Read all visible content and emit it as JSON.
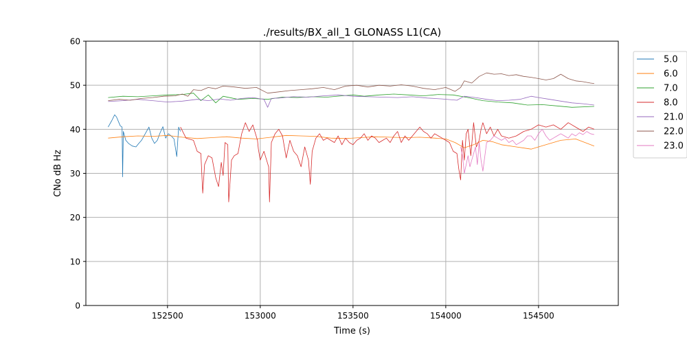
{
  "chart_data": {
    "type": "line",
    "title": "./results/BX_all_1 GLONASS L1(CA)",
    "xlabel": "Time (s)",
    "ylabel": "CNo dB Hz",
    "xlim": [
      152060,
      154930
    ],
    "ylim": [
      0,
      60
    ],
    "xticks": [
      152500,
      153000,
      153500,
      154000,
      154500
    ],
    "xtick_labels": [
      "152500",
      "153000",
      "153500",
      "154000",
      "154500"
    ],
    "yticks": [
      0,
      10,
      20,
      30,
      40,
      50,
      60
    ],
    "ytick_labels": [
      "0",
      "10",
      "20",
      "30",
      "40",
      "50",
      "60"
    ],
    "grid": true,
    "legend_position": "outside-top-right",
    "series": [
      {
        "name": "5.0",
        "color": "#1f77b4",
        "x": [
          152180,
          152200,
          152215,
          152225,
          152235,
          152245,
          152255,
          152258,
          152262,
          152275,
          152290,
          152310,
          152330,
          152345,
          152360,
          152380,
          152400,
          152415,
          152430,
          152445,
          152460,
          152475,
          152490,
          152505,
          152520,
          152535,
          152550,
          152560,
          152570
        ],
        "y": [
          40.5,
          42,
          43.3,
          42.8,
          41.8,
          40.8,
          40.5,
          29.2,
          39.5,
          37.5,
          36.8,
          36.2,
          36,
          36.8,
          37.5,
          39,
          40.5,
          38,
          36.8,
          37.5,
          39.2,
          40.6,
          38,
          39,
          38.5,
          37.8,
          33.8,
          40.5,
          39.5
        ]
      },
      {
        "name": "6.0",
        "color": "#ff7f0e",
        "x": [
          152180,
          152260,
          152340,
          152420,
          152500,
          152580,
          152660,
          152740,
          152820,
          152900,
          152980,
          153060,
          153140,
          153220,
          153300,
          153380,
          153460,
          153540,
          153620,
          153700,
          153780,
          153860,
          153940,
          154000,
          154050,
          154100,
          154150,
          154200,
          154250,
          154300,
          154380,
          154460,
          154540,
          154620,
          154700,
          154800
        ],
        "y": [
          38,
          38.3,
          38.5,
          38.4,
          38.6,
          38.2,
          37.9,
          38.1,
          38.3,
          38,
          37.8,
          38.2,
          38.6,
          38.5,
          38.4,
          38,
          37.9,
          38.1,
          38.3,
          38.2,
          38.1,
          38.2,
          38,
          37.8,
          37,
          35.8,
          36.5,
          37.5,
          37.2,
          36.5,
          36,
          35.5,
          36.5,
          37.5,
          37.8,
          36.2
        ]
      },
      {
        "name": "7.0",
        "color": "#2ca02c",
        "x": [
          152180,
          152260,
          152340,
          152420,
          152500,
          152580,
          152640,
          152680,
          152720,
          152760,
          152800,
          152880,
          152960,
          153040,
          153120,
          153200,
          153280,
          153360,
          153440,
          153500,
          153560,
          153640,
          153720,
          153800,
          153880,
          153960,
          154040,
          154120,
          154200,
          154280,
          154360,
          154440,
          154520,
          154600,
          154680,
          154800
        ],
        "y": [
          47.2,
          47.5,
          47.4,
          47.6,
          47.8,
          47.9,
          48.2,
          46.5,
          47.8,
          46,
          47.5,
          46.8,
          47,
          46.8,
          47.3,
          47.2,
          47.4,
          47.3,
          47.6,
          47.8,
          47.5,
          47.8,
          48,
          47.8,
          47.6,
          47.9,
          47.8,
          47.2,
          46.5,
          46.2,
          46,
          45.5,
          45.6,
          45.3,
          45,
          45.2
        ]
      },
      {
        "name": "8.0",
        "color": "#d62728",
        "x": [
          152570,
          152600,
          152640,
          152660,
          152680,
          152690,
          152700,
          152720,
          152740,
          152760,
          152775,
          152790,
          152800,
          152810,
          152825,
          152830,
          152845,
          152860,
          152880,
          152900,
          152920,
          152940,
          152960,
          152985,
          152990,
          153000,
          153020,
          153045,
          153050,
          153060,
          153080,
          153100,
          153120,
          153140,
          153160,
          153180,
          153200,
          153220,
          153240,
          153260,
          153270,
          153280,
          153300,
          153320,
          153340,
          153360,
          153380,
          153400,
          153420,
          153440,
          153460,
          153480,
          153500,
          153520,
          153540,
          153560,
          153580,
          153600,
          153620,
          153640,
          153660,
          153680,
          153700,
          153720,
          153740,
          153760,
          153780,
          153800,
          153820,
          153840,
          153860,
          153880,
          153900,
          153920,
          153940,
          153960,
          153980,
          154000,
          154020,
          154040,
          154060,
          154070,
          154080,
          154090,
          154100,
          154110,
          154120,
          154135,
          154150,
          154165,
          154180,
          154190,
          154200,
          154220,
          154240,
          154260,
          154280,
          154300,
          154340,
          154380,
          154420,
          154460,
          154500,
          154540,
          154580,
          154620,
          154660,
          154700,
          154740,
          154770,
          154800
        ],
        "y": [
          40.5,
          38,
          37.5,
          35,
          34.5,
          25.5,
          32,
          34,
          33.5,
          29,
          27,
          32.5,
          29.5,
          37,
          36.5,
          23.5,
          33,
          34,
          34.5,
          39,
          41.5,
          39.5,
          41,
          37.5,
          35.5,
          33,
          35,
          31.5,
          23.5,
          37,
          39,
          40,
          38.5,
          33.5,
          37.5,
          35,
          34,
          31.5,
          36,
          33,
          27.5,
          35,
          38,
          39,
          37.5,
          38,
          37.5,
          37,
          38.5,
          36.5,
          38,
          37,
          36.5,
          37.5,
          38,
          39,
          37.5,
          38.5,
          38,
          37,
          37.5,
          38,
          37,
          38.5,
          39.5,
          37,
          38.5,
          37.5,
          38.5,
          39.5,
          40.5,
          39.5,
          39,
          38,
          39,
          38.5,
          38,
          37.5,
          37,
          35,
          34.5,
          31,
          28.5,
          37.5,
          33,
          39,
          40,
          34,
          41.5,
          36,
          37.5,
          40,
          41.5,
          39,
          40.5,
          38.5,
          40,
          38.5,
          38,
          38.5,
          39.5,
          40,
          41,
          40.5,
          41,
          40,
          41.5,
          40.5,
          39.5,
          40.5,
          40
        ]
      },
      {
        "name": "21.0",
        "color": "#9467bd",
        "x": [
          152180,
          152260,
          152340,
          152420,
          152500,
          152580,
          152660,
          152720,
          152780,
          152840,
          152900,
          152960,
          153020,
          153040,
          153060,
          153100,
          153180,
          153260,
          153340,
          153420,
          153500,
          153580,
          153660,
          153740,
          153820,
          153900,
          153980,
          154060,
          154100,
          154160,
          154220,
          154280,
          154340,
          154400,
          154460,
          154500,
          154560,
          154620,
          154680,
          154740,
          154800
        ],
        "y": [
          46.3,
          46.5,
          46.8,
          46.5,
          46.2,
          46.4,
          46.8,
          46.5,
          46.9,
          46.6,
          47,
          47.2,
          46.8,
          45,
          47,
          47.1,
          47.4,
          47.3,
          47.6,
          47.8,
          47.5,
          47.4,
          47.3,
          47.2,
          47.4,
          47.1,
          46.9,
          46.6,
          47.5,
          47.2,
          46.8,
          46.5,
          46.6,
          46.8,
          47.5,
          47.2,
          46.8,
          46.4,
          46,
          45.8,
          45.5
        ]
      },
      {
        "name": "22.0",
        "color": "#8c564b",
        "x": [
          152180,
          152240,
          152300,
          152360,
          152420,
          152480,
          152540,
          152580,
          152610,
          152640,
          152680,
          152720,
          152760,
          152800,
          152860,
          152920,
          152980,
          153040,
          153100,
          153160,
          153220,
          153280,
          153340,
          153400,
          153460,
          153520,
          153580,
          153640,
          153700,
          153760,
          153820,
          153880,
          153940,
          154000,
          154050,
          154080,
          154100,
          154140,
          154180,
          154220,
          154260,
          154300,
          154340,
          154380,
          154420,
          154460,
          154500,
          154540,
          154580,
          154620,
          154660,
          154700,
          154740,
          154780,
          154800
        ],
        "y": [
          46.5,
          46.8,
          46.6,
          47,
          47.2,
          47.5,
          47.6,
          48,
          47.5,
          49,
          48.8,
          49.5,
          49.2,
          49.8,
          49.6,
          49.3,
          49.5,
          48.2,
          48.5,
          48.8,
          49,
          49.2,
          49.5,
          49,
          49.8,
          50,
          49.6,
          50,
          49.8,
          50.1,
          49.8,
          49.3,
          49,
          49.5,
          48.6,
          49.5,
          51,
          50.5,
          52,
          52.8,
          52.5,
          52.6,
          52.2,
          52.4,
          52,
          51.8,
          51.5,
          51.2,
          51.5,
          52.5,
          51.5,
          51,
          50.8,
          50.5,
          50.4
        ]
      },
      {
        "name": "23.0",
        "color": "#e377c2",
        "x": [
          154080,
          154090,
          154100,
          154110,
          154120,
          154130,
          154140,
          154150,
          154160,
          154170,
          154180,
          154190,
          154200,
          154220,
          154240,
          154260,
          154280,
          154300,
          154320,
          154340,
          154360,
          154380,
          154400,
          154420,
          154440,
          154460,
          154480,
          154500,
          154520,
          154540,
          154560,
          154580,
          154600,
          154620,
          154640,
          154660,
          154680,
          154700,
          154720,
          154740,
          154760,
          154780,
          154800
        ],
        "y": [
          36,
          34,
          30,
          32,
          34,
          31.5,
          33,
          34.5,
          36,
          32,
          37,
          33,
          30.5,
          37,
          37.5,
          38.5,
          38,
          37.5,
          38,
          37,
          37.5,
          36.5,
          37,
          37.5,
          38.5,
          38.5,
          37.5,
          39,
          40,
          38.5,
          37.5,
          38,
          38.5,
          39,
          38.5,
          38,
          39,
          38.5,
          39.2,
          38.8,
          39.5,
          39,
          38.8
        ]
      }
    ]
  }
}
